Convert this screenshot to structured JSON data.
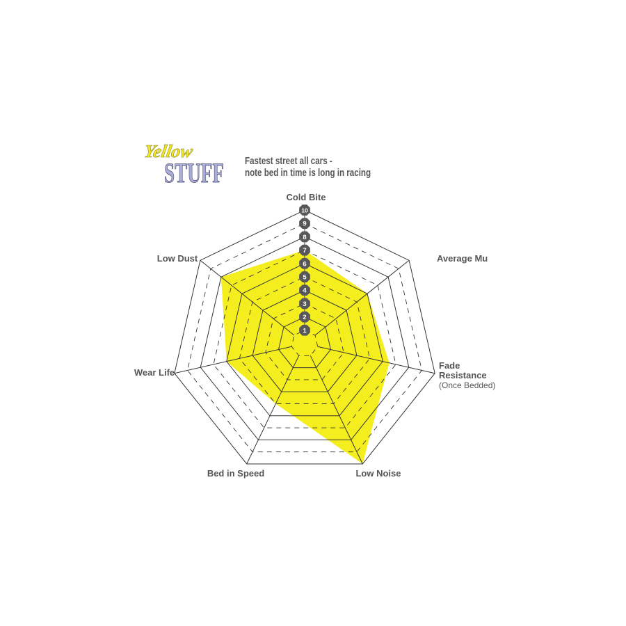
{
  "logo": {
    "line1": "Yellow",
    "line2": "STUFF"
  },
  "subtitle": [
    "Fastest street all cars -",
    "note bed in time is long in racing"
  ],
  "chart_data": {
    "type": "radar",
    "axes": [
      "Cold Bite",
      "Average Mu",
      "Fade Resistance",
      "Low Noise",
      "Bed in Speed",
      "Wear Life",
      "Low Dust"
    ],
    "axis_sublabels": {
      "Fade Resistance": "(Once Bedded)"
    },
    "values": [
      7,
      6,
      6.5,
      10,
      5,
      6,
      8
    ],
    "range": [
      0,
      10
    ],
    "tick_labels": [
      "1",
      "2",
      "3",
      "4",
      "5",
      "6",
      "7",
      "8",
      "9",
      "10"
    ],
    "fill_color": "#f5ee1e",
    "grid_color": "#333333",
    "badge_color": "#58585a"
  }
}
